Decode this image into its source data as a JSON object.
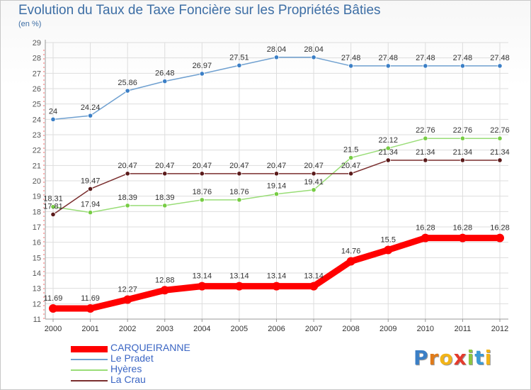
{
  "header": {
    "title": "Evolution du Taux de Taxe Foncière sur les Propriétés Bâties",
    "subtitle": "(en %)"
  },
  "brand": {
    "letters": [
      "P",
      "r",
      "o",
      "x",
      "i",
      "t",
      "i"
    ],
    "colors": [
      "#3b7fc6",
      "#e07b1a",
      "#f2b418",
      "#e43b2c",
      "#8cc63f",
      "#3b9ad6",
      "#f2b418"
    ]
  },
  "chart_data": {
    "type": "line",
    "title": "Evolution du Taux de Taxe Foncière sur les Propriétés Bâties",
    "ylabel": "(en %)",
    "xlabel": "",
    "x": [
      "2000",
      "2001",
      "2002",
      "2003",
      "2004",
      "2005",
      "2006",
      "2007",
      "2008",
      "2009",
      "2010",
      "2011",
      "2012"
    ],
    "ylim": [
      11,
      29
    ],
    "yticks": [
      11,
      12,
      13,
      14,
      15,
      16,
      17,
      18,
      19,
      20,
      21,
      22,
      23,
      24,
      25,
      26,
      27,
      28,
      29
    ],
    "grid": true,
    "legend_position": "bottom-left",
    "series": [
      {
        "name": "CARQUEIRANNE",
        "color": "#ff0000",
        "marker_color": "#ff0000",
        "emphasis": true,
        "values": [
          11.69,
          11.69,
          12.27,
          12.88,
          13.14,
          13.14,
          13.14,
          13.14,
          14.76,
          15.5,
          16.28,
          16.28,
          16.28
        ],
        "labels": [
          "11.69",
          "11.69",
          "12.27",
          "12.88",
          "13.14",
          "13.14",
          "13.14",
          "13.14",
          "14.76",
          "15.5",
          "16.28",
          "16.28",
          "16.28"
        ]
      },
      {
        "name": "Le Pradet",
        "color": "#6fa0d0",
        "marker_color": "#3b7fc6",
        "emphasis": false,
        "values": [
          24,
          24.24,
          25.86,
          26.48,
          26.97,
          27.51,
          28.04,
          28.04,
          27.48,
          27.48,
          27.48,
          27.48,
          27.48
        ],
        "labels": [
          "24",
          "24.24",
          "25.86",
          "26.48",
          "26.97",
          "27.51",
          "28.04",
          "28.04",
          "27.48",
          "27.48",
          "27.48",
          "27.48",
          "27.48"
        ]
      },
      {
        "name": "Hyères",
        "color": "#99dd77",
        "marker_color": "#77cc44",
        "emphasis": false,
        "values": [
          18.31,
          17.94,
          18.39,
          18.39,
          18.76,
          18.76,
          19.14,
          19.41,
          21.5,
          22.12,
          22.76,
          22.76,
          22.76
        ],
        "labels": [
          "18.31",
          "17.94",
          "18.39",
          "18.39",
          "18.76",
          "18.76",
          "19.14",
          "19.41",
          "21.5",
          "22.12",
          "22.76",
          "22.76",
          "22.76"
        ]
      },
      {
        "name": "La Crau",
        "color": "#7a2e2e",
        "marker_color": "#5a1a1a",
        "emphasis": false,
        "values": [
          17.81,
          19.47,
          20.47,
          20.47,
          20.47,
          20.47,
          20.47,
          20.47,
          20.47,
          21.34,
          21.34,
          21.34,
          21.34
        ],
        "labels": [
          "17.81",
          "19.47",
          "20.47",
          "20.47",
          "20.47",
          "20.47",
          "20.47",
          "20.47",
          "20.47",
          "21.34",
          "21.34",
          "21.34",
          "21.34"
        ]
      }
    ]
  }
}
